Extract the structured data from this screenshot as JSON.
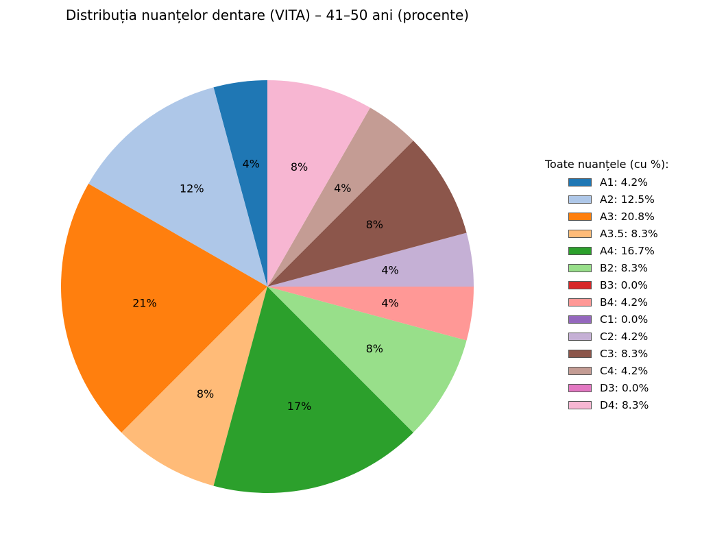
{
  "chart_data": {
    "type": "pie",
    "title": "Distribuția nuanțelor dentare (VITA) – 41–50 ani (procente)",
    "legend_title": "Toate nuanțele (cu %):",
    "legend_position": "right",
    "start_angle": "top",
    "direction": "counterclockwise",
    "slices": [
      {
        "name": "A1",
        "value": 4.2,
        "pct_label": "4%",
        "legend_label": "A1: 4.2%",
        "color": "#1f77b4"
      },
      {
        "name": "A2",
        "value": 12.5,
        "pct_label": "12%",
        "legend_label": "A2: 12.5%",
        "color": "#aec7e8"
      },
      {
        "name": "A3",
        "value": 20.8,
        "pct_label": "21%",
        "legend_label": "A3: 20.8%",
        "color": "#ff7f0e"
      },
      {
        "name": "A3.5",
        "value": 8.3,
        "pct_label": "8%",
        "legend_label": "A3.5: 8.3%",
        "color": "#ffbb78"
      },
      {
        "name": "A4",
        "value": 16.7,
        "pct_label": "17%",
        "legend_label": "A4: 16.7%",
        "color": "#2ca02c"
      },
      {
        "name": "B2",
        "value": 8.3,
        "pct_label": "8%",
        "legend_label": "B2: 8.3%",
        "color": "#98df8a"
      },
      {
        "name": "B3",
        "value": 0.0,
        "pct_label": "",
        "legend_label": "B3: 0.0%",
        "color": "#d62728"
      },
      {
        "name": "B4",
        "value": 4.2,
        "pct_label": "4%",
        "legend_label": "B4: 4.2%",
        "color": "#ff9896"
      },
      {
        "name": "C1",
        "value": 0.0,
        "pct_label": "",
        "legend_label": "C1: 0.0%",
        "color": "#9467bd"
      },
      {
        "name": "C2",
        "value": 4.2,
        "pct_label": "4%",
        "legend_label": "C2: 4.2%",
        "color": "#c5b0d5"
      },
      {
        "name": "C3",
        "value": 8.3,
        "pct_label": "8%",
        "legend_label": "C3: 8.3%",
        "color": "#8c564b"
      },
      {
        "name": "C4",
        "value": 4.2,
        "pct_label": "4%",
        "legend_label": "C4: 4.2%",
        "color": "#c49c94"
      },
      {
        "name": "D3",
        "value": 0.0,
        "pct_label": "",
        "legend_label": "D3: 0.0%",
        "color": "#e377c2"
      },
      {
        "name": "D4",
        "value": 8.3,
        "pct_label": "8%",
        "legend_label": "D4: 8.3%",
        "color": "#f7b6d2"
      }
    ]
  }
}
